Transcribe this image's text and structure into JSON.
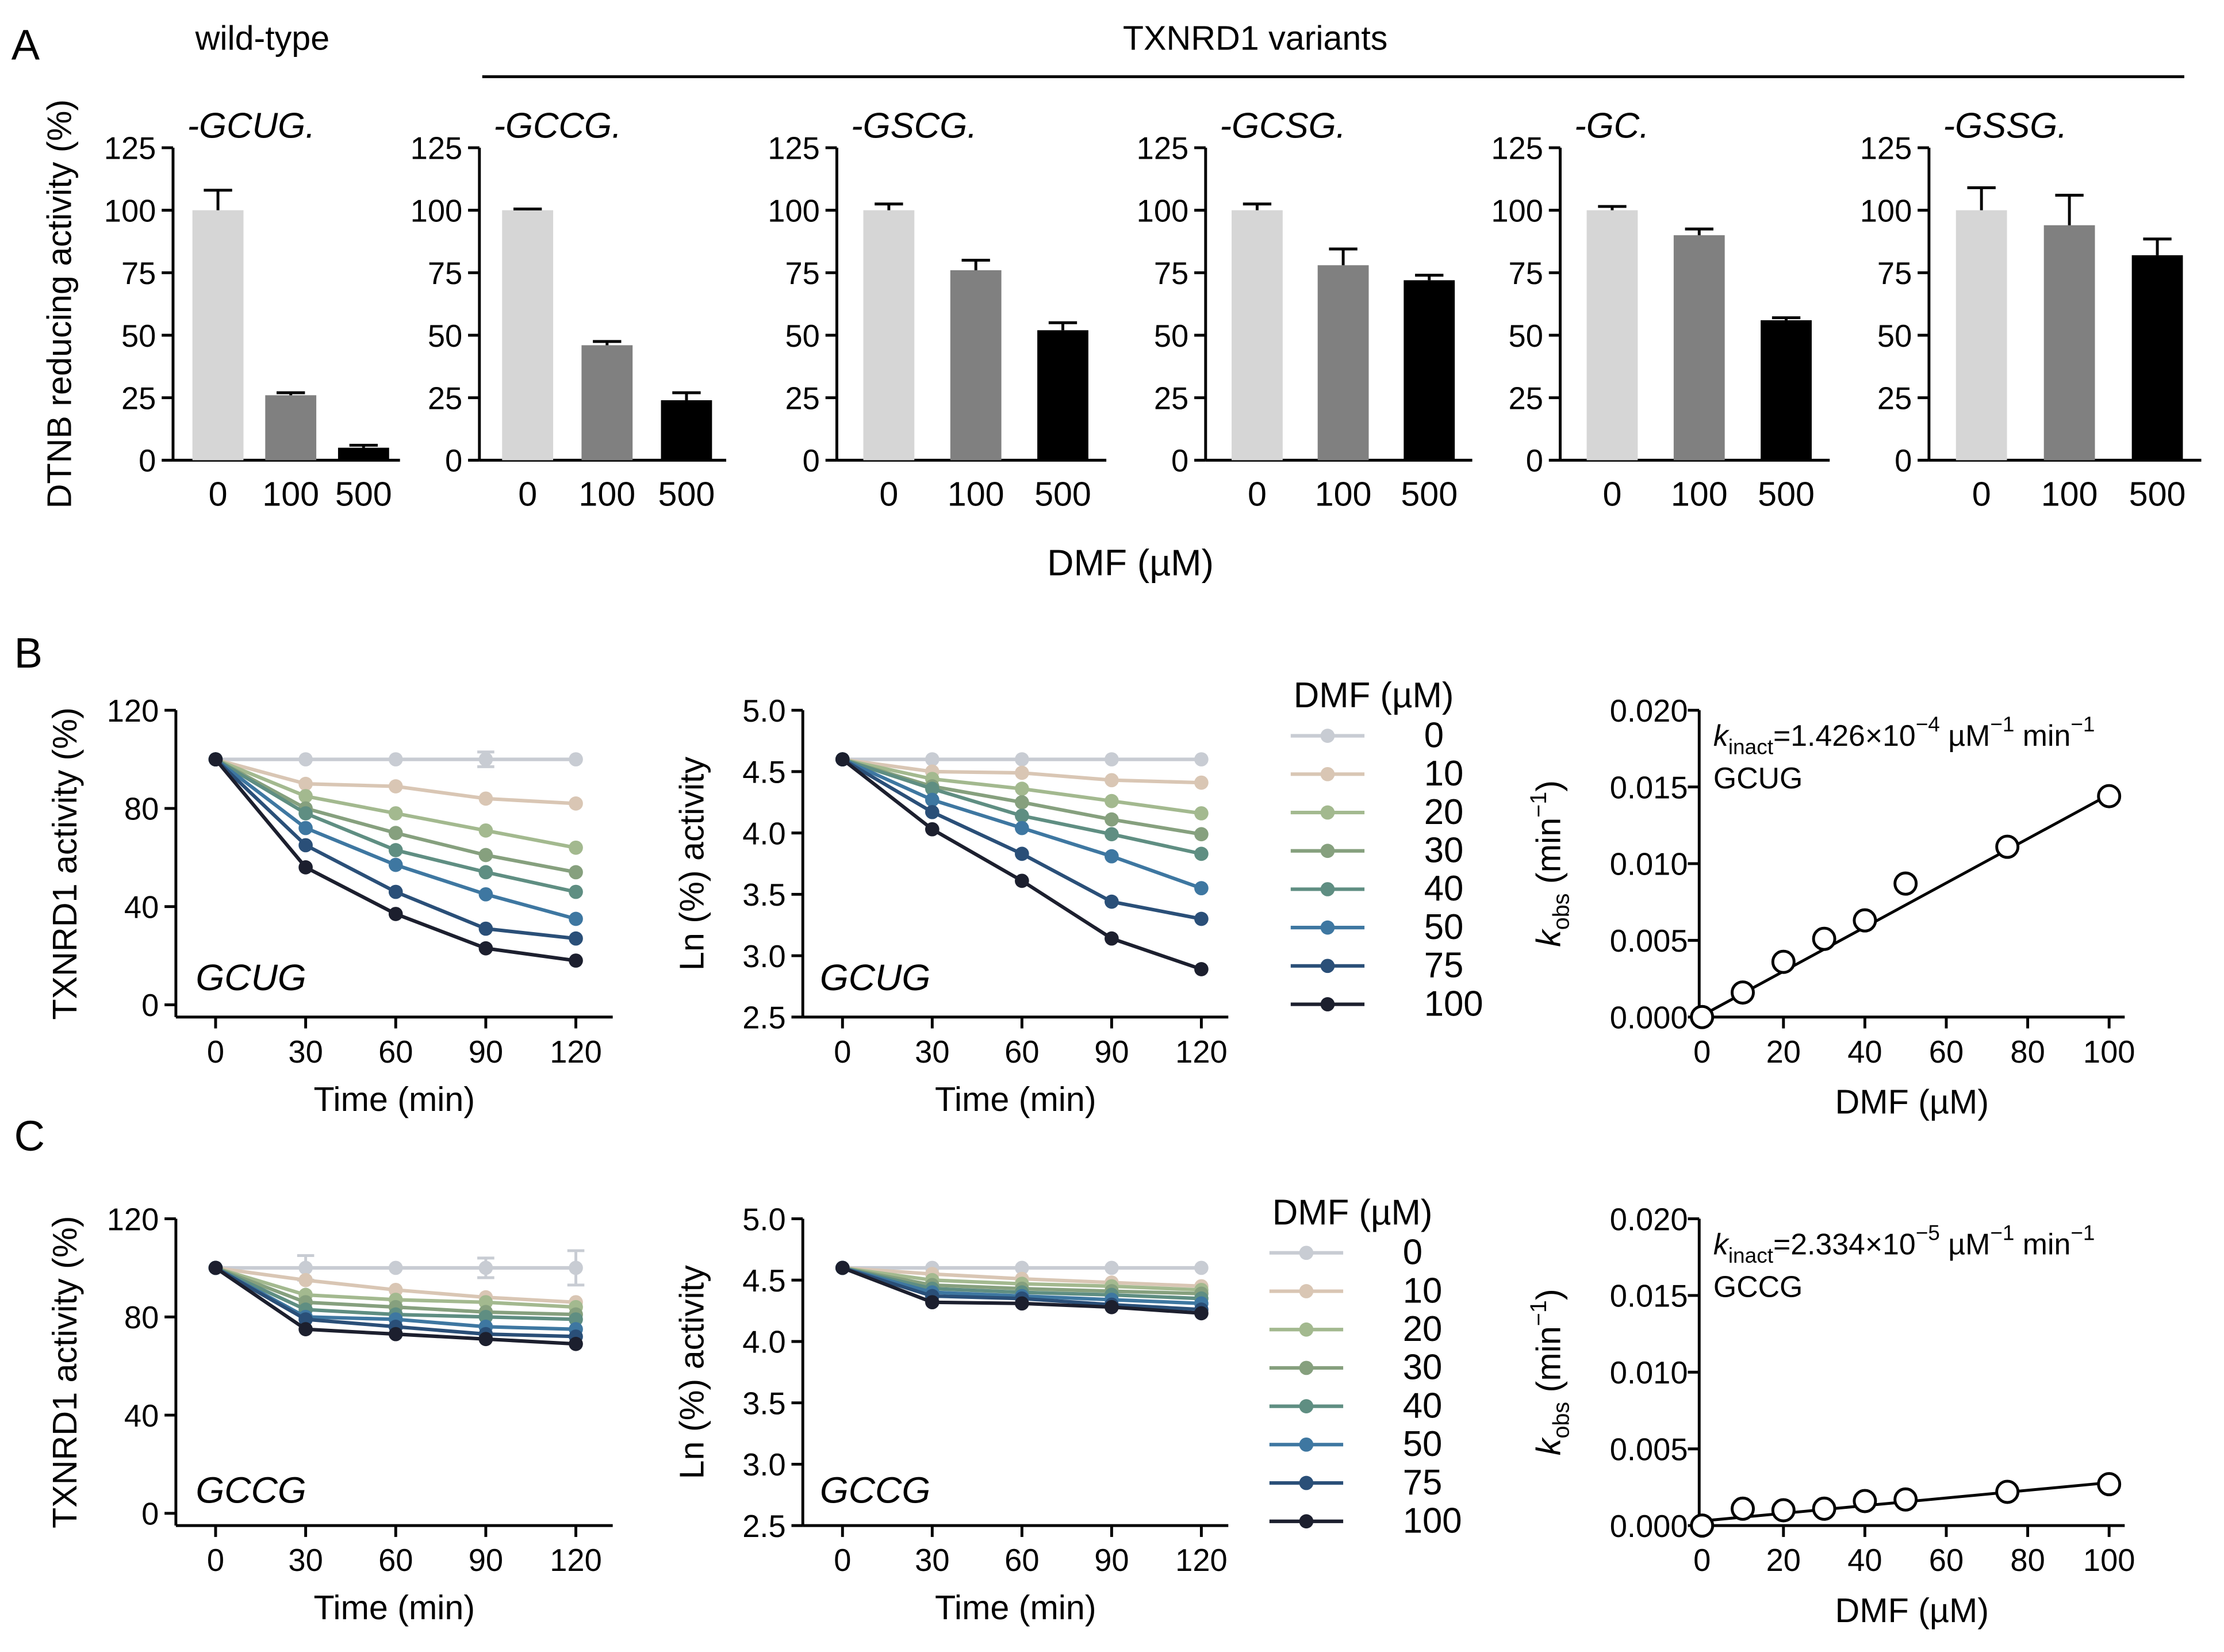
{
  "figure": {
    "panel_a_label": "A",
    "panel_b_label": "B",
    "panel_c_label": "C",
    "group_wildtype": "wild-type",
    "group_variants": "TXNRD1 variants"
  },
  "chart_data": [
    {
      "id": "A-GCUG",
      "type": "bar",
      "title": "-GCUG.",
      "categories": [
        "0",
        "100",
        "500"
      ],
      "values": [
        100,
        26,
        5
      ],
      "errors": [
        8,
        1,
        1
      ],
      "colors": [
        "#d6d6d6",
        "#808080",
        "#000000"
      ],
      "ylabel": "DTNB reducing activity (%)",
      "xlabel": "",
      "ylim": [
        0,
        125
      ],
      "yticks": [
        "0",
        "25",
        "50",
        "75",
        "100",
        "125"
      ]
    },
    {
      "id": "A-GCCG",
      "type": "bar",
      "title": "-GCCG.",
      "categories": [
        "0",
        "100",
        "500"
      ],
      "values": [
        100,
        46,
        24
      ],
      "errors": [
        0.5,
        1.5,
        3
      ],
      "colors": [
        "#d6d6d6",
        "#808080",
        "#000000"
      ],
      "ylim": [
        0,
        125
      ],
      "yticks": [
        "0",
        "25",
        "50",
        "75",
        "100",
        "125"
      ]
    },
    {
      "id": "A-GSCG",
      "type": "bar",
      "title": "-GSCG.",
      "categories": [
        "0",
        "100",
        "500"
      ],
      "values": [
        100,
        76,
        52
      ],
      "errors": [
        2.5,
        4,
        3
      ],
      "colors": [
        "#d6d6d6",
        "#808080",
        "#000000"
      ],
      "ylim": [
        0,
        125
      ],
      "yticks": [
        "0",
        "25",
        "50",
        "75",
        "100",
        "125"
      ]
    },
    {
      "id": "A-GCSG",
      "type": "bar",
      "title": "-GCSG.",
      "categories": [
        "0",
        "100",
        "500"
      ],
      "values": [
        100,
        78,
        72
      ],
      "errors": [
        2.5,
        6.5,
        2
      ],
      "colors": [
        "#d6d6d6",
        "#808080",
        "#000000"
      ],
      "xlabel": "DMF (µM)",
      "ylim": [
        0,
        125
      ],
      "yticks": [
        "0",
        "25",
        "50",
        "75",
        "100",
        "125"
      ]
    },
    {
      "id": "A-GC",
      "type": "bar",
      "title": "-GC.",
      "categories": [
        "0",
        "100",
        "500"
      ],
      "values": [
        100,
        90,
        56
      ],
      "errors": [
        1.5,
        2.5,
        1
      ],
      "colors": [
        "#d6d6d6",
        "#808080",
        "#000000"
      ],
      "ylim": [
        0,
        125
      ],
      "yticks": [
        "0",
        "25",
        "50",
        "75",
        "100",
        "125"
      ]
    },
    {
      "id": "A-GSSG",
      "type": "bar",
      "title": "-GSSG.",
      "categories": [
        "0",
        "100",
        "500"
      ],
      "values": [
        100,
        94,
        82
      ],
      "errors": [
        9,
        12,
        6.5
      ],
      "colors": [
        "#d6d6d6",
        "#808080",
        "#000000"
      ],
      "ylim": [
        0,
        125
      ],
      "yticks": [
        "0",
        "25",
        "50",
        "75",
        "100",
        "125"
      ]
    },
    {
      "id": "B-activity",
      "type": "line",
      "annotation": "GCUG",
      "xlabel": "Time (min)",
      "ylabel": "TXNRD1 activity (%)",
      "xlim": [
        0,
        120
      ],
      "ylim": [
        -5,
        120
      ],
      "xticks": [
        "0",
        "30",
        "60",
        "90",
        "120"
      ],
      "yticks": [
        "0",
        "40",
        "80",
        "120"
      ],
      "x": [
        0,
        30,
        60,
        90,
        120
      ],
      "series": [
        {
          "name": "0",
          "color": "#c8ccd3",
          "values": [
            100,
            100,
            100,
            100,
            100
          ],
          "errors": [
            0,
            0,
            0,
            3,
            0
          ]
        },
        {
          "name": "10",
          "color": "#d9c6b4",
          "values": [
            100,
            90,
            89,
            84,
            82
          ]
        },
        {
          "name": "20",
          "color": "#a3b98f",
          "values": [
            100,
            85,
            78,
            71,
            64
          ]
        },
        {
          "name": "30",
          "color": "#86a07e",
          "values": [
            100,
            80,
            70,
            61,
            54
          ]
        },
        {
          "name": "40",
          "color": "#5f8e82",
          "values": [
            100,
            78,
            63,
            54,
            46
          ]
        },
        {
          "name": "50",
          "color": "#3e77a1",
          "values": [
            100,
            72,
            57,
            45,
            35
          ]
        },
        {
          "name": "75",
          "color": "#2a4f78",
          "values": [
            100,
            65,
            46,
            31,
            27
          ]
        },
        {
          "name": "100",
          "color": "#1c1f2e",
          "values": [
            100,
            56,
            37,
            23,
            18
          ]
        }
      ]
    },
    {
      "id": "B-ln",
      "type": "line",
      "annotation": "GCUG",
      "xlabel": "Time (min)",
      "ylabel": "Ln (%) activity",
      "xlim": [
        0,
        120
      ],
      "ylim": [
        2.5,
        5.0
      ],
      "xticks": [
        "0",
        "30",
        "60",
        "90",
        "120"
      ],
      "yticks": [
        "2.5",
        "3.0",
        "3.5",
        "4.0",
        "4.5",
        "5.0"
      ],
      "x": [
        0,
        30,
        60,
        90,
        120
      ],
      "series": [
        {
          "name": "0",
          "color": "#c8ccd3",
          "values": [
            4.6,
            4.6,
            4.6,
            4.6,
            4.6
          ]
        },
        {
          "name": "10",
          "color": "#d9c6b4",
          "values": [
            4.6,
            4.5,
            4.49,
            4.43,
            4.41
          ]
        },
        {
          "name": "20",
          "color": "#a3b98f",
          "values": [
            4.6,
            4.44,
            4.36,
            4.26,
            4.16
          ]
        },
        {
          "name": "30",
          "color": "#86a07e",
          "values": [
            4.6,
            4.38,
            4.25,
            4.11,
            3.99
          ]
        },
        {
          "name": "40",
          "color": "#5f8e82",
          "values": [
            4.6,
            4.36,
            4.14,
            3.99,
            3.83
          ]
        },
        {
          "name": "50",
          "color": "#3e77a1",
          "values": [
            4.6,
            4.27,
            4.04,
            3.81,
            3.55
          ]
        },
        {
          "name": "75",
          "color": "#2a4f78",
          "values": [
            4.6,
            4.17,
            3.83,
            3.44,
            3.3
          ]
        },
        {
          "name": "100",
          "color": "#1c1f2e",
          "values": [
            4.6,
            4.03,
            3.61,
            3.14,
            2.89
          ]
        }
      ]
    },
    {
      "id": "B-kobs",
      "type": "scatter",
      "annotation": "kinact=1.426×10−4 µM−1 min−1",
      "annotation_pre": "k",
      "annotation_sub": "inact",
      "annotation_main": "=1.426×10",
      "annotation_exp": "−4",
      "annotation_mid": " µM",
      "annotation_exp2": "−1",
      "annotation_tail": " min",
      "annotation_exp3": "−1",
      "variant": "GCUG",
      "xlabel": "DMF (µM)",
      "ylabel": "kobs (min−1)",
      "ylabel_pre": "k",
      "ylabel_sub": "obs",
      "ylabel_main": " (min",
      "ylabel_exp": "−1",
      "ylabel_tail": ")",
      "xlim": [
        0,
        100
      ],
      "ylim": [
        0,
        0.02
      ],
      "xticks": [
        "0",
        "20",
        "40",
        "60",
        "80",
        "100"
      ],
      "yticks": [
        "0.000",
        "0.005",
        "0.010",
        "0.015",
        "0.020"
      ],
      "x": [
        0,
        10,
        20,
        30,
        40,
        50,
        75,
        100
      ],
      "y": [
        0,
        0.0016,
        0.0036,
        0.0051,
        0.0063,
        0.0087,
        0.0111,
        0.0144
      ],
      "fit": [
        [
          0,
          0.0001
        ],
        [
          100,
          0.0145
        ]
      ]
    },
    {
      "id": "C-activity",
      "type": "line",
      "annotation": "GCCG",
      "xlabel": "Time (min)",
      "ylabel": "TXNRD1 activity (%)",
      "xlim": [
        0,
        120
      ],
      "ylim": [
        -5,
        120
      ],
      "xticks": [
        "0",
        "30",
        "60",
        "90",
        "120"
      ],
      "yticks": [
        "0",
        "40",
        "80",
        "120"
      ],
      "x": [
        0,
        30,
        60,
        90,
        120
      ],
      "series": [
        {
          "name": "0",
          "color": "#c8ccd3",
          "values": [
            100,
            100,
            100,
            100,
            100
          ],
          "errors": [
            0,
            5,
            0,
            4,
            7
          ]
        },
        {
          "name": "10",
          "color": "#d9c6b4",
          "values": [
            100,
            95,
            91,
            88,
            86
          ]
        },
        {
          "name": "20",
          "color": "#a3b98f",
          "values": [
            100,
            89,
            87,
            86,
            84
          ]
        },
        {
          "name": "30",
          "color": "#86a07e",
          "values": [
            100,
            86,
            84,
            82,
            81
          ]
        },
        {
          "name": "40",
          "color": "#5f8e82",
          "values": [
            100,
            83,
            81,
            80,
            79
          ]
        },
        {
          "name": "50",
          "color": "#3e77a1",
          "values": [
            100,
            80,
            79,
            76,
            75
          ]
        },
        {
          "name": "75",
          "color": "#2a4f78",
          "values": [
            100,
            79,
            76,
            73,
            72
          ]
        },
        {
          "name": "100",
          "color": "#1c1f2e",
          "values": [
            100,
            75,
            73,
            71,
            69
          ]
        }
      ]
    },
    {
      "id": "C-ln",
      "type": "line",
      "annotation": "GCCG",
      "xlabel": "Time (min)",
      "ylabel": "Ln (%) activity",
      "xlim": [
        0,
        120
      ],
      "ylim": [
        2.5,
        5.0
      ],
      "xticks": [
        "0",
        "30",
        "60",
        "90",
        "120"
      ],
      "yticks": [
        "2.5",
        "3.0",
        "3.5",
        "4.0",
        "4.5",
        "5.0"
      ],
      "x": [
        0,
        30,
        60,
        90,
        120
      ],
      "series": [
        {
          "name": "0",
          "color": "#c8ccd3",
          "values": [
            4.6,
            4.6,
            4.6,
            4.6,
            4.6
          ]
        },
        {
          "name": "10",
          "color": "#d9c6b4",
          "values": [
            4.6,
            4.55,
            4.51,
            4.48,
            4.45
          ]
        },
        {
          "name": "20",
          "color": "#a3b98f",
          "values": [
            4.6,
            4.5,
            4.47,
            4.45,
            4.42
          ]
        },
        {
          "name": "30",
          "color": "#86a07e",
          "values": [
            4.6,
            4.46,
            4.43,
            4.41,
            4.39
          ]
        },
        {
          "name": "40",
          "color": "#5f8e82",
          "values": [
            4.6,
            4.43,
            4.4,
            4.38,
            4.35
          ]
        },
        {
          "name": "50",
          "color": "#3e77a1",
          "values": [
            4.6,
            4.4,
            4.37,
            4.34,
            4.31
          ]
        },
        {
          "name": "75",
          "color": "#2a4f78",
          "values": [
            4.6,
            4.37,
            4.35,
            4.3,
            4.26
          ]
        },
        {
          "name": "100",
          "color": "#1c1f2e",
          "values": [
            4.6,
            4.32,
            4.31,
            4.28,
            4.23
          ]
        }
      ]
    },
    {
      "id": "C-kobs",
      "type": "scatter",
      "annotation": "kinact=2.334×10−5 µM−1 min−1",
      "annotation_pre": "k",
      "annotation_sub": "inact",
      "annotation_main": "=2.334×10",
      "annotation_exp": "−5",
      "annotation_mid": " µM",
      "annotation_exp2": "−1",
      "annotation_tail": " min",
      "annotation_exp3": "−1",
      "variant": "GCCG",
      "xlabel": "DMF (µM)",
      "ylabel": "kobs (min−1)",
      "ylabel_pre": "k",
      "ylabel_sub": "obs",
      "ylabel_main": " (min",
      "ylabel_exp": "−1",
      "ylabel_tail": ")",
      "xlim": [
        0,
        100
      ],
      "ylim": [
        0,
        0.02
      ],
      "xticks": [
        "0",
        "20",
        "40",
        "60",
        "80",
        "100"
      ],
      "yticks": [
        "0.000",
        "0.005",
        "0.010",
        "0.015",
        "0.020"
      ],
      "x": [
        0,
        10,
        20,
        30,
        40,
        50,
        75,
        100
      ],
      "y": [
        0,
        0.0011,
        0.001,
        0.0011,
        0.0016,
        0.0017,
        0.0022,
        0.0027
      ],
      "fit": [
        [
          0,
          0.0003
        ],
        [
          100,
          0.0028
        ]
      ]
    }
  ],
  "legends": [
    {
      "title": "DMF (µM)",
      "items": [
        "0",
        "10",
        "20",
        "30",
        "40",
        "50",
        "75",
        "100"
      ]
    },
    {
      "title": "DMF (µM)",
      "items": [
        "0",
        "10",
        "20",
        "30",
        "40",
        "50",
        "75",
        "100"
      ]
    }
  ]
}
